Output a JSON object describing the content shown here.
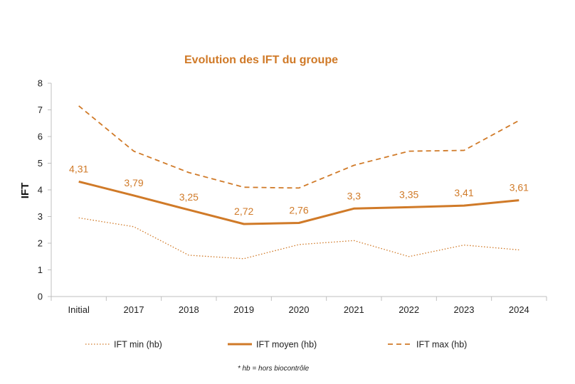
{
  "chart_data": {
    "type": "line",
    "title": "Evolution des IFT du groupe",
    "xlabel": "",
    "ylabel": "IFT",
    "ylim": [
      0,
      8
    ],
    "yticks": [
      0,
      1,
      2,
      3,
      4,
      5,
      6,
      7,
      8
    ],
    "ytick_labels": [
      "0",
      "1",
      "2",
      "3",
      "4",
      "5",
      "6",
      "7",
      "8"
    ],
    "grid": false,
    "legend_position": "bottom",
    "categories": [
      "Initial",
      "2017",
      "2018",
      "2019",
      "2020",
      "2021",
      "2022",
      "2023",
      "2024"
    ],
    "series": [
      {
        "name": "IFT min (hb)",
        "style": "dotted",
        "values": [
          2.95,
          2.62,
          1.55,
          1.42,
          1.95,
          2.1,
          1.5,
          1.93,
          1.75
        ],
        "data_labels": null
      },
      {
        "name": "IFT moyen (hb)",
        "style": "solid",
        "values": [
          4.31,
          3.79,
          3.25,
          2.72,
          2.76,
          3.3,
          3.35,
          3.41,
          3.61
        ],
        "data_labels": [
          "4,31",
          "3,79",
          "3,25",
          "2,72",
          "2,76",
          "3,3",
          "3,35",
          "3,41",
          "3,61"
        ]
      },
      {
        "name": "IFT max (hb)",
        "style": "dashed",
        "values": [
          7.15,
          5.45,
          4.65,
          4.1,
          4.07,
          4.92,
          5.45,
          5.48,
          6.6
        ],
        "data_labels": null
      }
    ],
    "footnote": "* hb = hors biocontrôle"
  },
  "colors": {
    "series": "#D07A28",
    "axis": "#BFBFBF",
    "text": "#222222"
  }
}
